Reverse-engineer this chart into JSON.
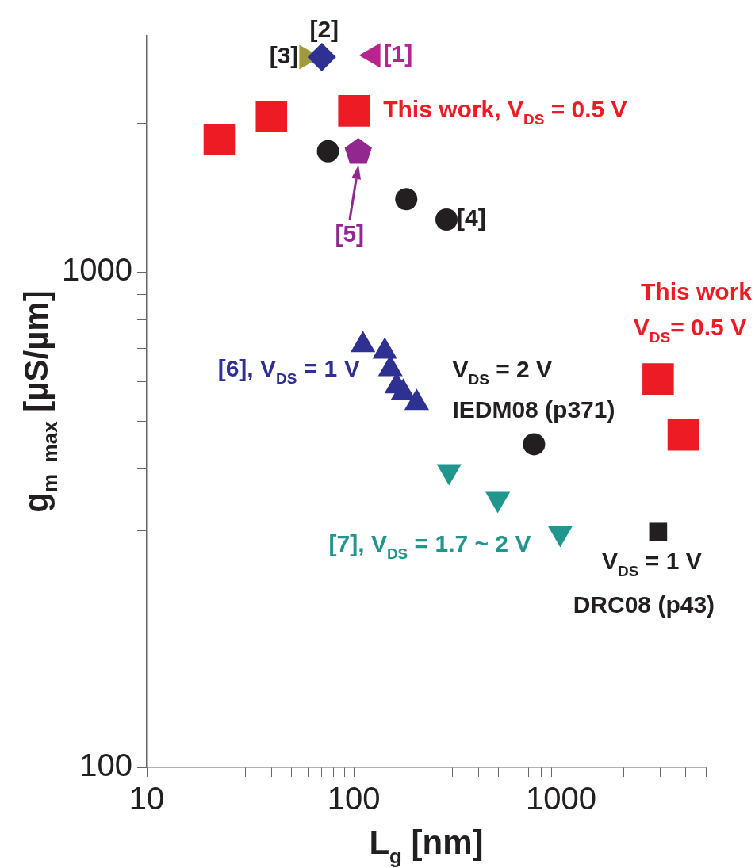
{
  "chart_data": {
    "type": "scatter",
    "xlabel": "L$_{g}$ [nm]",
    "ylabel": "g$_{m_max}$ [µS/µm]",
    "log": "xy",
    "grid": false,
    "legend": false,
    "xlim": [
      10,
      5000
    ],
    "ylim": [
      100,
      3000
    ],
    "xticks": [
      10,
      {
        "value": 20,
        "label": null
      },
      {
        "value": 30,
        "label": null
      },
      {
        "value": 40,
        "label": null
      },
      {
        "value": 50,
        "label": null
      },
      {
        "value": 60,
        "label": null
      },
      {
        "value": 70,
        "label": null
      },
      {
        "value": 80,
        "label": null
      },
      {
        "value": 90,
        "label": null
      },
      100,
      {
        "value": 200,
        "label": null
      },
      {
        "value": 300,
        "label": null
      },
      {
        "value": 400,
        "label": null
      },
      {
        "value": 500,
        "label": null
      },
      {
        "value": 600,
        "label": null
      },
      {
        "value": 700,
        "label": null
      },
      {
        "value": 800,
        "label": null
      },
      {
        "value": 900,
        "label": null
      },
      1000,
      {
        "value": 2000,
        "label": null
      },
      {
        "value": 3000,
        "label": null
      },
      {
        "value": 4000,
        "label": null
      },
      {
        "value": 5000,
        "label": null
      }
    ],
    "yticks": [
      100,
      {
        "value": 200,
        "label": null
      },
      {
        "value": 300,
        "label": null
      },
      {
        "value": 400,
        "label": null
      },
      {
        "value": 500,
        "label": null
      },
      {
        "value": 600,
        "label": null
      },
      {
        "value": 700,
        "label": null
      },
      {
        "value": 800,
        "label": null
      },
      {
        "value": 900,
        "label": null
      },
      1000,
      {
        "value": 2000,
        "label": null
      },
      {
        "value": 3000,
        "label": null
      }
    ],
    "series": [
      {
        "color": "#ed1c24",
        "marker": "square",
        "x": [
          22.4,
          40,
          100
        ],
        "values": [
          1853,
          2062,
          2115
        ]
      },
      {
        "color": "#ed1c24",
        "marker": "square",
        "x": [
          2943,
          3890
        ],
        "values": [
          608,
          469
        ]
      },
      {
        "color": "#231f20",
        "marker": "circle",
        "x": [
          75,
          179,
          280
        ],
        "values": [
          1753,
          1403,
          1276
        ]
      },
      {
        "color": "#92278f",
        "x": [
          105
        ],
        "values": [
          1745
        ]
      },
      {
        "color": "#b8238e",
        "marker": "triangle-left",
        "x": [
          124
        ],
        "values": [
          2738
        ]
      },
      {
        "color": "#2e3192",
        "marker": "diamond",
        "x": [
          70
        ],
        "values": [
          2716
        ]
      },
      {
        "color": "#a09a3c",
        "marker": "triangle-right",
        "x": [
          59
        ],
        "values": [
          2716
        ]
      },
      {
        "color": "#2e3192",
        "marker": "triangle",
        "x": [
          110.6,
          141,
          150,
          161,
          173,
          201
        ],
        "values": [
          712,
          691,
          637,
          588,
          571,
          544
        ]
      },
      {
        "color": "#231f20",
        "marker": "circle",
        "x": [
          741
        ],
        "values": [
          449
        ]
      },
      {
        "color": "#21968f",
        "marker": "triangle-down",
        "x": [
          288,
          495,
          991
        ],
        "values": [
          396,
          348,
          297
        ]
      },
      {
        "color": "#231f20",
        "marker": "square",
        "x": [
          2943
        ],
        "values": [
          299
        ]
      }
    ],
    "annotations": [
      {
        "text": "[1]",
        "x": 124,
        "y": 2738
      },
      {
        "text": "[2]",
        "x": 70,
        "y": 2716
      },
      {
        "text": "[3]",
        "x": 59,
        "y": 2716
      },
      {
        "text": "This work, V$_{DS}$ = 0.5 V",
        "x": 100,
        "y": 2115
      },
      {
        "text": "[4]",
        "x": 280,
        "y": 1276
      },
      {
        "text": "[5]",
        "x": 105,
        "y": 1745
      },
      "This work",
      "V$_{DS}$= 0.5 V",
      {
        "text": "[6], V$_{DS}$ = 1 V",
        "x": 110.6,
        "y": 712
      },
      {
        "text": "V$_{DS}$ = 2 V",
        "x": 741,
        "y": 449
      },
      {
        "text": "IEDM08 (p371)",
        "x": 741,
        "y": 449
      },
      {
        "text": "[7], V$_{DS}$ = 1.7 ~ 2 V",
        "x": 991,
        "y": 297
      },
      {
        "text": "V$_{DS}$ = 1 V",
        "x": 2943,
        "y": 299
      },
      {
        "text": "DRC08 (p43)",
        "x": 2943,
        "y": 299
      }
    ]
  }
}
